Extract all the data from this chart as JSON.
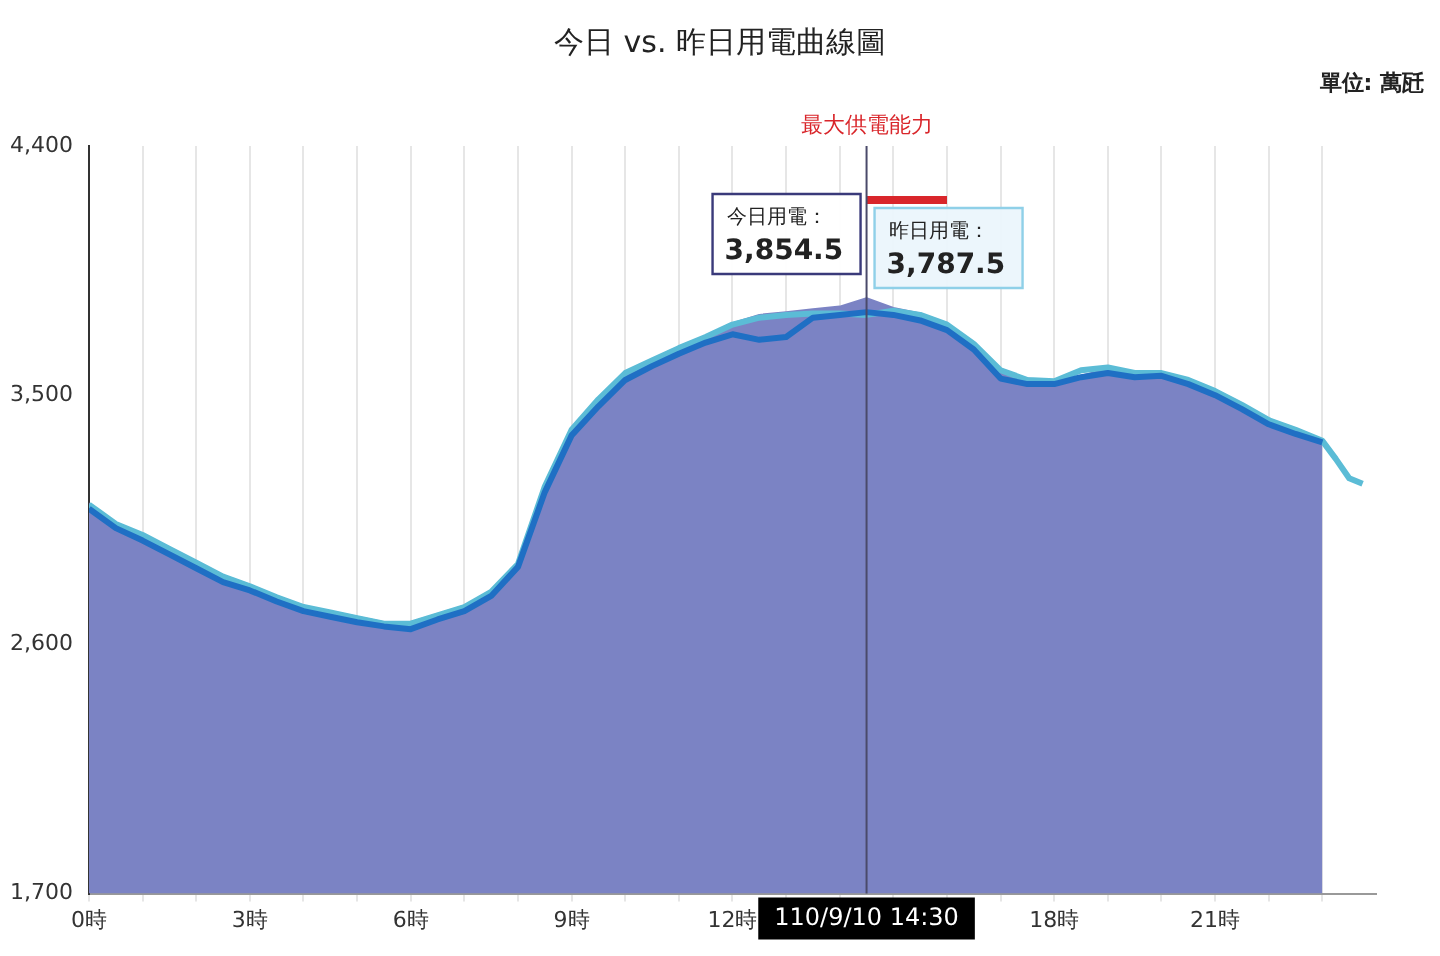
{
  "chart_data": {
    "type": "area",
    "title": "今日 vs. 昨日用電曲線圖",
    "ylabel": "單位: 萬瓩",
    "xlim": [
      0,
      24
    ],
    "xticks": [
      {
        "value": 0,
        "label": "0時"
      },
      {
        "value": 1,
        "label": null
      },
      {
        "value": 2,
        "label": null
      },
      {
        "value": 3,
        "label": "3時"
      },
      {
        "value": 4,
        "label": null
      },
      {
        "value": 5,
        "label": null
      },
      {
        "value": 6,
        "label": "6時"
      },
      {
        "value": 7,
        "label": null
      },
      {
        "value": 8,
        "label": null
      },
      {
        "value": 9,
        "label": "9時"
      },
      {
        "value": 10,
        "label": null
      },
      {
        "value": 11,
        "label": null
      },
      {
        "value": 12,
        "label": "12時"
      },
      {
        "value": 13,
        "label": null
      },
      {
        "value": 14,
        "label": null
      },
      {
        "value": 15,
        "label": null
      },
      {
        "value": 16,
        "label": null
      },
      {
        "value": 17,
        "label": null
      },
      {
        "value": 18,
        "label": "18時"
      },
      {
        "value": 19,
        "label": null
      },
      {
        "value": 20,
        "label": null
      },
      {
        "value": 21,
        "label": "21時"
      },
      {
        "value": 22,
        "label": null
      },
      {
        "value": 23,
        "label": null
      }
    ],
    "ylim": [
      1700,
      4400
    ],
    "yticks": [
      {
        "value": 1700,
        "label": "1,700"
      },
      {
        "value": 2600,
        "label": "2,600"
      },
      {
        "value": 3500,
        "label": "3,500"
      },
      {
        "value": 4400,
        "label": "4,400"
      }
    ],
    "grid": "x",
    "marker": "none",
    "x": [
      0,
      0.5,
      1,
      1.5,
      2,
      2.5,
      3,
      3.5,
      4,
      4.5,
      5,
      5.5,
      6,
      6.5,
      7,
      7.5,
      8,
      8.5,
      9,
      9.5,
      10,
      10.5,
      11,
      11.5,
      12,
      12.5,
      13,
      13.5,
      14,
      14.5,
      15,
      15.5,
      16,
      16.5,
      17,
      17.5,
      18,
      18.5,
      19,
      19.5,
      20,
      20.5,
      21,
      21.5,
      22,
      22.5,
      23
    ],
    "series": [
      {
        "color": "#7b83c4",
        "values": [
          3110,
          3040,
          3000,
          2950,
          2900,
          2850,
          2815,
          2775,
          2740,
          2720,
          2700,
          2680,
          2680,
          2710,
          2740,
          2795,
          2895,
          3160,
          3380,
          3490,
          3585,
          3630,
          3675,
          3715,
          3760,
          3790,
          3800,
          3810,
          3820,
          3850,
          3815,
          3795,
          3760,
          3690,
          3595,
          3560,
          3550,
          3570,
          3595,
          3580,
          3580,
          3560,
          3520,
          3470,
          3415,
          3380,
          3340
        ]
      },
      {
        "type": "line",
        "color": "#1f6fc4",
        "values": [
          3090,
          3020,
          2975,
          2925,
          2875,
          2825,
          2795,
          2755,
          2720,
          2700,
          2680,
          2665,
          2655,
          2690,
          2720,
          2775,
          2880,
          3150,
          3355,
          3460,
          3555,
          3605,
          3650,
          3690,
          3720,
          3700,
          3710,
          3780,
          3790,
          3800,
          3790,
          3770,
          3735,
          3665,
          3560,
          3540,
          3540,
          3565,
          3580,
          3565,
          3570,
          3540,
          3500,
          3450,
          3395,
          3360,
          3330
        ]
      },
      {
        "type": "line",
        "color": "#5bbcd6",
        "x": [
          0,
          0.5,
          1,
          1.5,
          2,
          2.5,
          3,
          3.5,
          4,
          4.5,
          5,
          5.5,
          6,
          6.5,
          7,
          7.5,
          8,
          8.5,
          9,
          9.5,
          10,
          10.5,
          11,
          11.5,
          12,
          12.5,
          13,
          13.5,
          14,
          14.5,
          15,
          15.5,
          16,
          16.5,
          17,
          17.5,
          18,
          18.5,
          19,
          19.5,
          20,
          20.5,
          21,
          21.5,
          22,
          22.5,
          23,
          23.25,
          23.5,
          23.75
        ],
        "values": [
          3105,
          3035,
          2995,
          2945,
          2895,
          2845,
          2810,
          2770,
          2735,
          2715,
          2695,
          2675,
          2675,
          2705,
          2735,
          2790,
          2890,
          3170,
          3375,
          3485,
          3580,
          3625,
          3670,
          3710,
          3755,
          3780,
          3790,
          3795,
          3795,
          3790,
          3805,
          3790,
          3755,
          3685,
          3590,
          3555,
          3550,
          3590,
          3600,
          3580,
          3580,
          3555,
          3515,
          3465,
          3410,
          3375,
          3335,
          3270,
          3200,
          3180
        ]
      },
      {
        "type": "line",
        "name": "最大供電能力",
        "color": "#d9262b",
        "x": [
          14.5,
          16
        ],
        "values": [
          4205,
          4205
        ]
      }
    ],
    "ref_lines": [
      {
        "axis": "x",
        "value": 14.5,
        "label": "110/9/10 14:30",
        "color": "#4a4a6a"
      }
    ],
    "annotations": [
      "今日用電：",
      "3,854.5",
      "昨日用電：",
      "3,787.5"
    ]
  }
}
